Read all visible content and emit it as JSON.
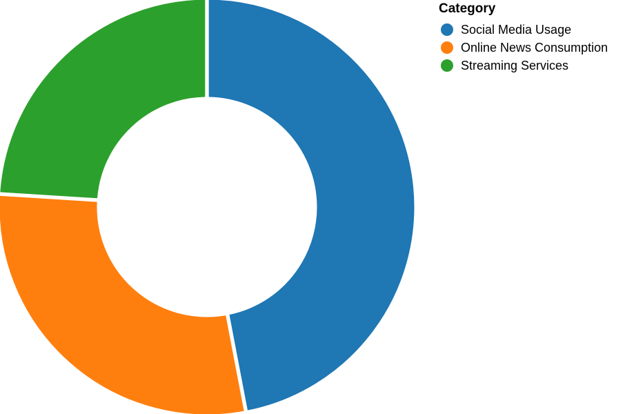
{
  "chart_data": {
    "type": "pie",
    "donut": true,
    "legend": {
      "title": "Category",
      "placement": "top-right"
    },
    "slices": [
      {
        "label": "Social Media Usage",
        "value": 47,
        "color": "#1f77b4"
      },
      {
        "label": "Online News Consumption",
        "value": 29,
        "color": "#ff7f0e"
      },
      {
        "label": "Streaming Services",
        "value": 24,
        "color": "#2ca02c"
      }
    ]
  }
}
